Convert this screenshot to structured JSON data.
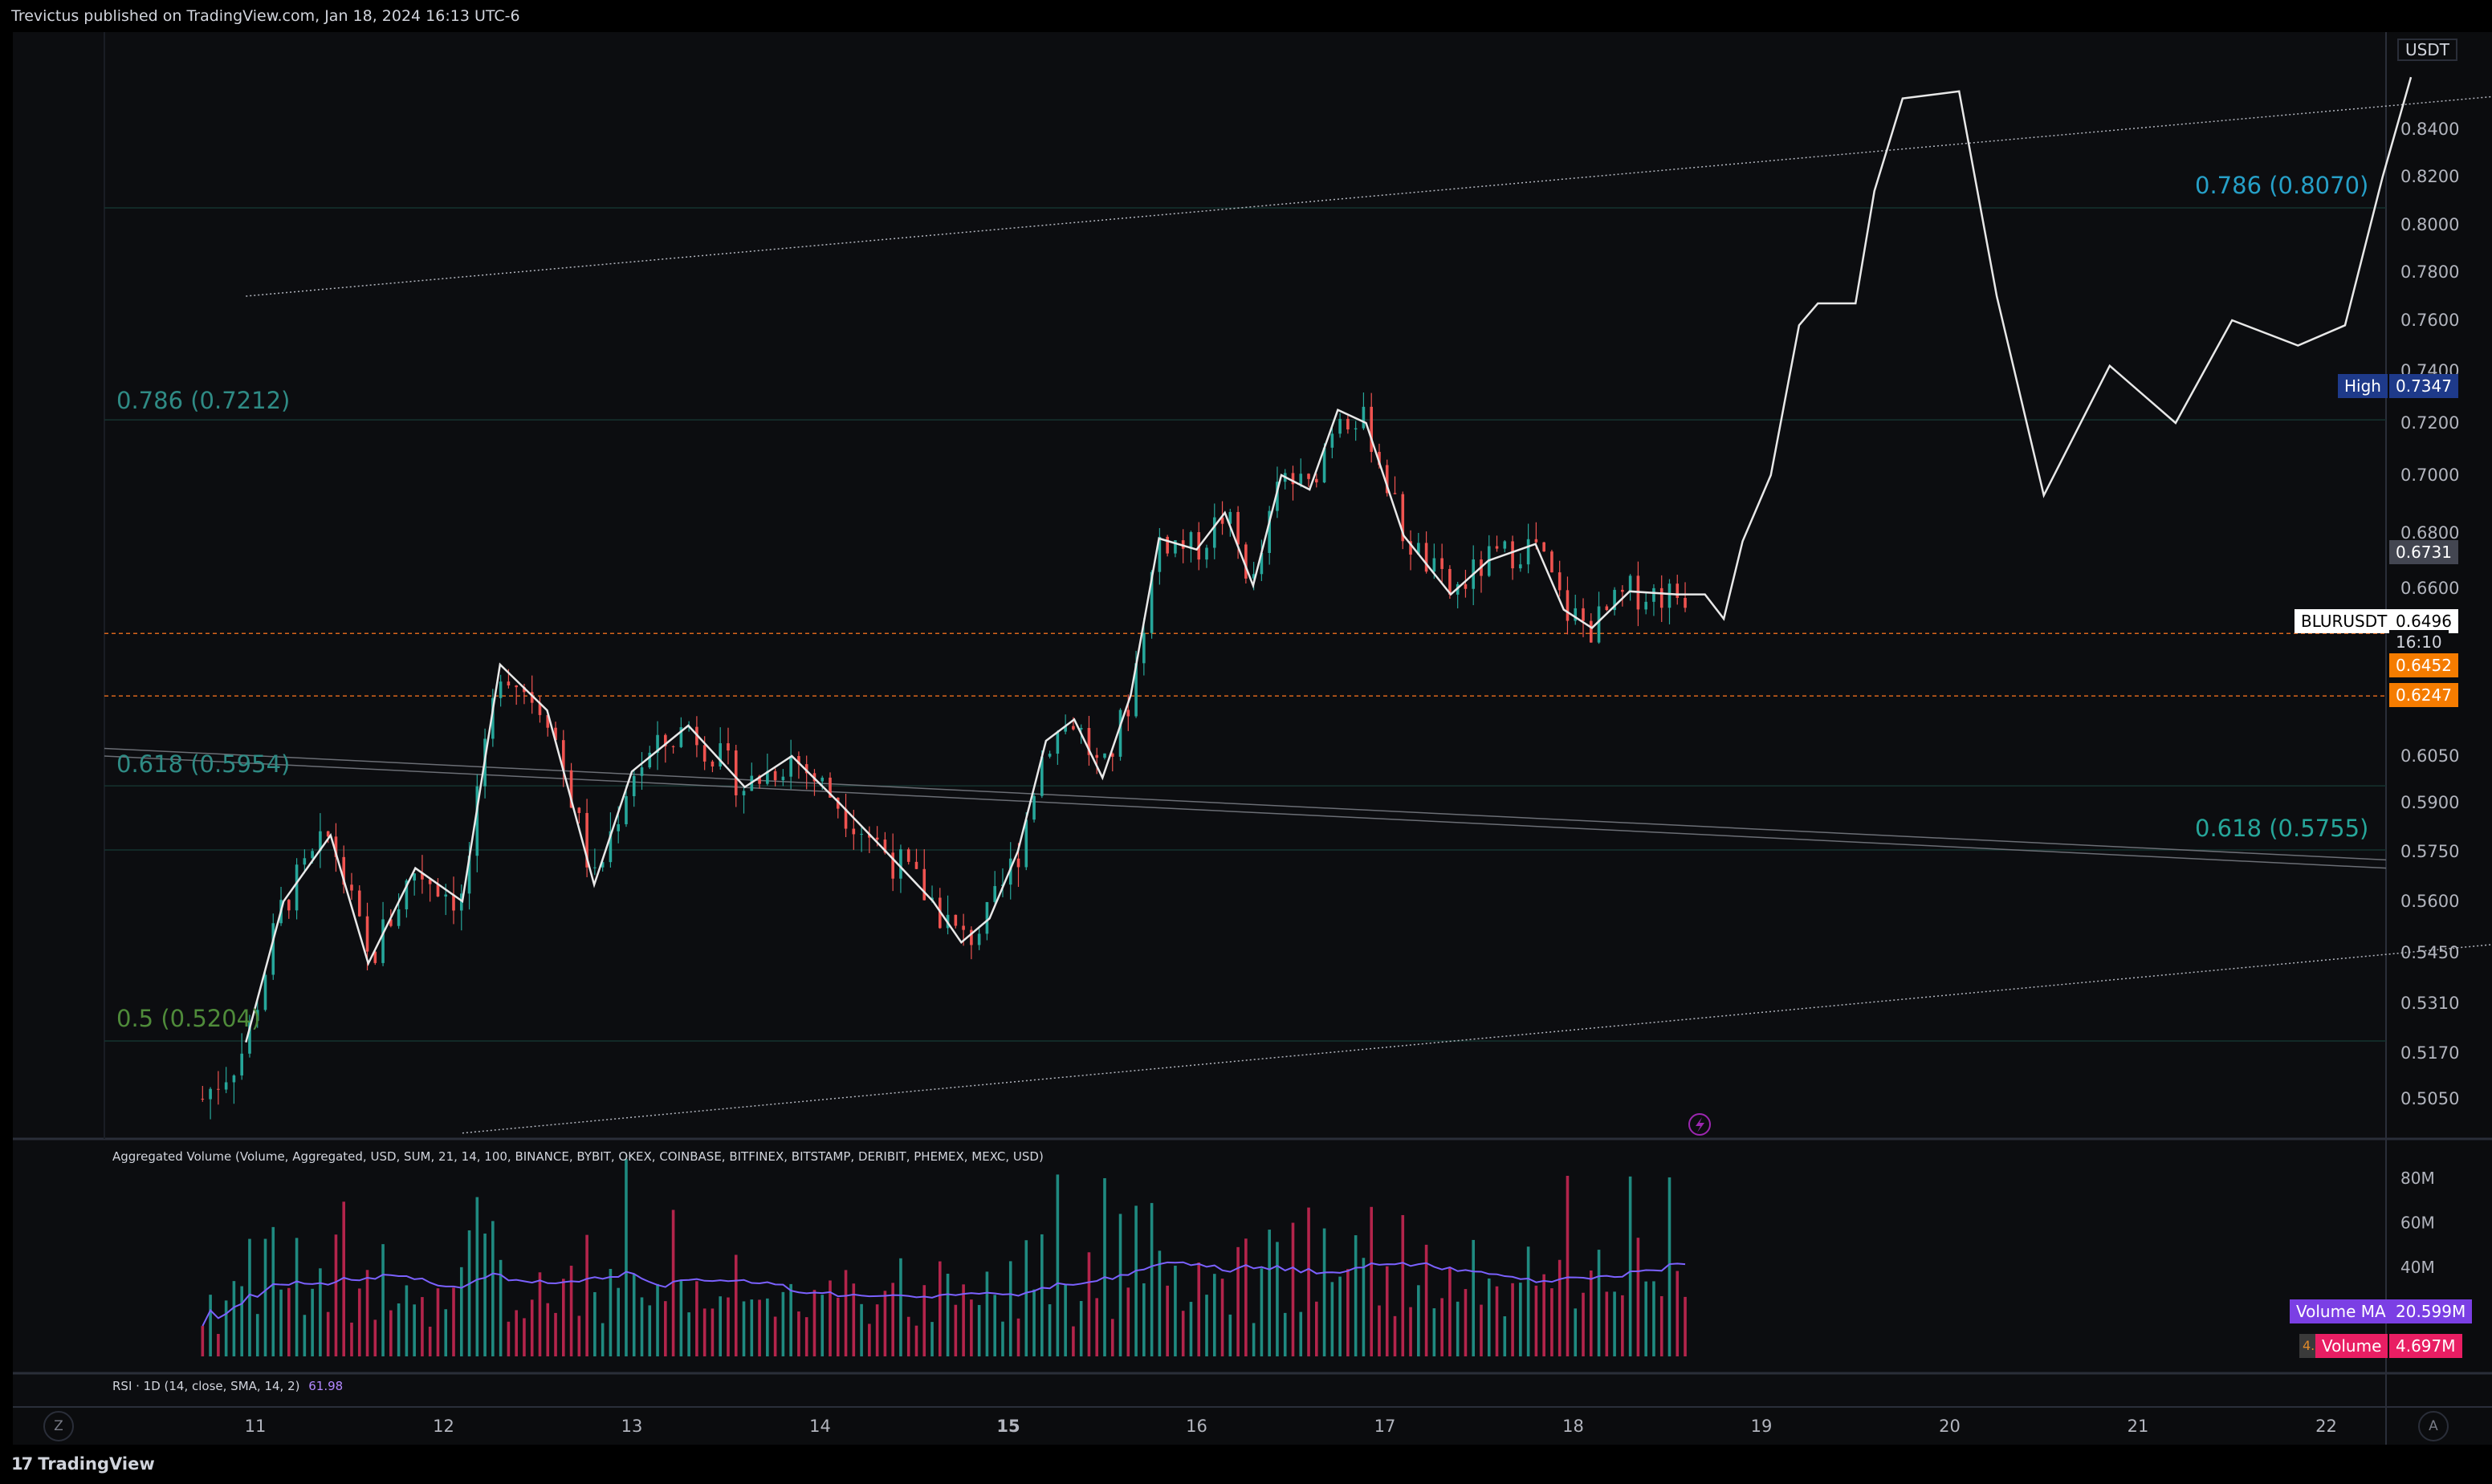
{
  "header": {
    "publisher": "Trevictus published on TradingView.com, Jan 18, 2024 16:13 UTC-6"
  },
  "price_axis": {
    "currency": "USDT",
    "ticks": [
      "0.8400",
      "0.8200",
      "0.8000",
      "0.7800",
      "0.7600",
      "0.7400",
      "0.7200",
      "0.7000",
      "0.6800",
      "0.6600",
      "0.6050",
      "0.5900",
      "0.5750",
      "0.5600",
      "0.5450",
      "0.5310",
      "0.5170",
      "0.5050"
    ]
  },
  "labels": {
    "symbol": "BLURUSDT",
    "last_price": "0.6496",
    "countdown": "16:10",
    "high_label": "High",
    "high_value": "0.7347",
    "price_0_6731": "0.6731",
    "level_a": "0.6452",
    "level_b": "0.6247"
  },
  "fib_labels": {
    "left_786": "0.786 (0.7212)",
    "left_618": "0.618 (0.5954)",
    "left_5": "0.5 (0.5204)",
    "right_786": "0.786 (0.8070)",
    "right_618": "0.618 (0.5755)"
  },
  "volume_panel": {
    "title": "Aggregated Volume (Volume, Aggregated, USD, SUM, 21, 14, 100, BINANCE, BYBIT, OKEX, COINBASE, BITFINEX, BITSTAMP, DERIBIT, PHEMEX, MEXC, USD)",
    "ticks": [
      "80M",
      "60M",
      "40M"
    ],
    "ma_label": "Volume MA",
    "ma_value": "20.599M",
    "vol_label": "Volume",
    "vol_value": "4.697M",
    "vol_badge": "4."
  },
  "rsi_panel": {
    "title": "RSI · 1D (14, close, SMA, 14, 2)",
    "value": "61.98"
  },
  "time_axis": {
    "labels": [
      "11",
      "12",
      "13",
      "14",
      "15",
      "16",
      "17",
      "18",
      "19",
      "20",
      "21",
      "22"
    ]
  },
  "footer": {
    "brand": "TradingView",
    "left_btn": "Z",
    "right_btn": "A"
  },
  "colors": {
    "up": "#26a69a",
    "down": "#ef5350",
    "fib": "#22ab94",
    "path": "#e8e8e8",
    "hline": "#d9651c",
    "high_bg": "#1e3a8a"
  },
  "chart_data": {
    "type": "candlestick",
    "symbol": "BLURUSDT",
    "x_axis": {
      "type": "date",
      "labels": [
        "11",
        "12",
        "13",
        "14",
        "15",
        "16",
        "17",
        "18",
        "19",
        "20",
        "21",
        "22"
      ]
    },
    "ylim": [
      0.496,
      0.862
    ],
    "projection_path": [
      [
        10.95,
        0.52
      ],
      [
        11.15,
        0.56
      ],
      [
        11.4,
        0.58
      ],
      [
        11.6,
        0.542
      ],
      [
        11.85,
        0.57
      ],
      [
        12.1,
        0.56
      ],
      [
        12.3,
        0.635
      ],
      [
        12.55,
        0.62
      ],
      [
        12.8,
        0.565
      ],
      [
        13.0,
        0.6
      ],
      [
        13.3,
        0.615
      ],
      [
        13.6,
        0.595
      ],
      [
        13.85,
        0.605
      ],
      [
        14.1,
        0.59
      ],
      [
        14.35,
        0.575
      ],
      [
        14.6,
        0.56
      ],
      [
        14.75,
        0.548
      ],
      [
        14.9,
        0.555
      ],
      [
        15.05,
        0.575
      ],
      [
        15.2,
        0.61
      ],
      [
        15.35,
        0.617
      ],
      [
        15.5,
        0.598
      ],
      [
        15.65,
        0.625
      ],
      [
        15.8,
        0.678
      ],
      [
        16.0,
        0.674
      ],
      [
        16.15,
        0.687
      ],
      [
        16.3,
        0.661
      ],
      [
        16.45,
        0.7
      ],
      [
        16.6,
        0.695
      ],
      [
        16.75,
        0.725
      ],
      [
        16.9,
        0.72
      ],
      [
        17.1,
        0.679
      ],
      [
        17.35,
        0.658
      ],
      [
        17.55,
        0.67
      ],
      [
        17.8,
        0.676
      ],
      [
        17.95,
        0.653
      ],
      [
        18.1,
        0.647
      ],
      [
        18.3,
        0.659
      ],
      [
        18.55,
        0.658
      ],
      [
        18.7,
        0.658
      ],
      [
        18.8,
        0.65
      ],
      [
        18.9,
        0.677
      ],
      [
        19.05,
        0.7
      ],
      [
        19.2,
        0.758
      ],
      [
        19.3,
        0.767
      ],
      [
        19.5,
        0.767
      ],
      [
        19.6,
        0.814
      ],
      [
        19.75,
        0.853
      ],
      [
        20.05,
        0.856
      ],
      [
        20.25,
        0.77
      ],
      [
        20.5,
        0.693
      ],
      [
        20.85,
        0.742
      ],
      [
        21.2,
        0.72
      ],
      [
        21.5,
        0.76
      ],
      [
        21.85,
        0.75
      ],
      [
        22.1,
        0.758
      ],
      [
        22.3,
        0.82
      ],
      [
        22.45,
        0.862
      ]
    ],
    "horizontal_levels": [
      0.6452,
      0.6247
    ],
    "fib_levels_left": [
      {
        "ratio": "0.786",
        "price": 0.7212
      },
      {
        "ratio": "0.618",
        "price": 0.5954
      },
      {
        "ratio": "0.5",
        "price": 0.5204
      }
    ],
    "fib_levels_right": [
      {
        "ratio": "0.786",
        "price": 0.807
      },
      {
        "ratio": "0.618",
        "price": 0.5755
      }
    ],
    "high": 0.7347,
    "last": 0.6496,
    "current_day": 18.6
  }
}
